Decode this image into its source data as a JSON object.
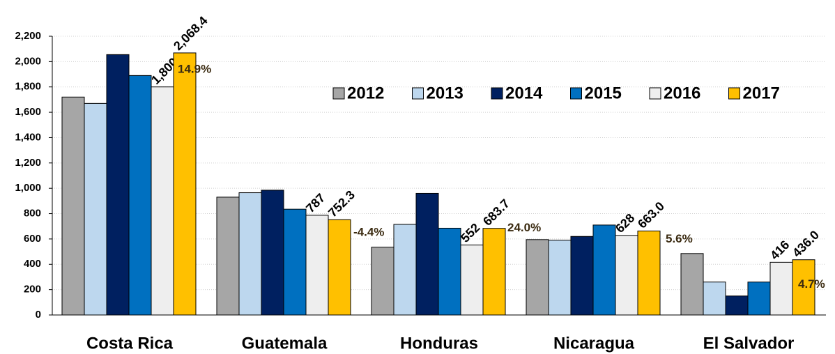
{
  "chart_data": {
    "type": "bar",
    "categories": [
      "Costa Rica",
      "Guatemala",
      "Honduras",
      "Nicaragua",
      "El Salvador"
    ],
    "series": [
      {
        "name": "2012",
        "color": "#a6a6a6",
        "values": [
          1720,
          930,
          535,
          595,
          485
        ]
      },
      {
        "name": "2013",
        "color": "#bdd7ee",
        "values": [
          1670,
          965,
          715,
          590,
          260
        ]
      },
      {
        "name": "2014",
        "color": "#002060",
        "values": [
          2055,
          985,
          960,
          620,
          150
        ]
      },
      {
        "name": "2015",
        "color": "#0070c0",
        "values": [
          1890,
          835,
          685,
          710,
          260
        ]
      },
      {
        "name": "2016",
        "color": "#eeeeee",
        "values": [
          1800,
          787,
          552,
          628,
          416
        ],
        "value_labels": [
          "1,800",
          "787",
          "552",
          "628",
          "416"
        ]
      },
      {
        "name": "2017",
        "color": "#ffc000",
        "values": [
          2068.4,
          752.3,
          683.7,
          663.0,
          436.0
        ],
        "value_labels": [
          "2,068.4",
          "752.3",
          "683.7",
          "663.0",
          "436.0"
        ]
      }
    ],
    "growth_labels": [
      "14.9%",
      "-4.4%",
      "24.0%",
      "5.6%",
      "4.7%"
    ],
    "ylim": [
      0,
      2200
    ],
    "yticks": [
      0,
      200,
      400,
      600,
      800,
      {
        "value": 1000,
        "label": "1,000"
      },
      {
        "value": 1200,
        "label": "1,200"
      },
      {
        "value": 1400,
        "label": "1,400"
      },
      {
        "value": 1600,
        "label": "1,600"
      },
      {
        "value": 1800,
        "label": "1,800"
      },
      {
        "value": 2000,
        "label": "2,000"
      },
      {
        "value": 2200,
        "label": "2,200"
      }
    ],
    "grid": true,
    "legend": "top-right"
  }
}
